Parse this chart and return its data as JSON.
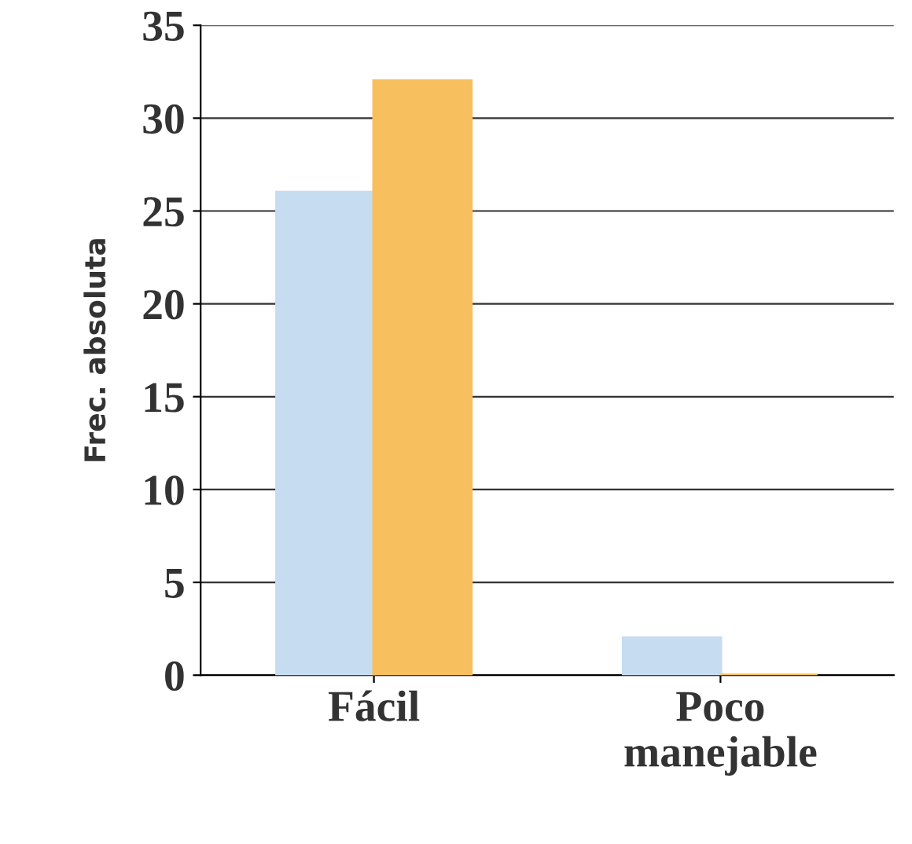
{
  "chart_data": {
    "type": "bar",
    "ylabel": "Frec. absoluta",
    "categories": [
      "Fácil",
      "Poco\nmanejable"
    ],
    "series": [
      {
        "color": "#c6dcf0",
        "values": [
          26,
          2
        ]
      },
      {
        "color": "#f8bf5e",
        "values": [
          32,
          0
        ]
      }
    ],
    "ylim": [
      0,
      35
    ],
    "yticks": [
      0,
      5,
      10,
      15,
      20,
      25,
      30,
      35
    ],
    "grid": "y"
  }
}
